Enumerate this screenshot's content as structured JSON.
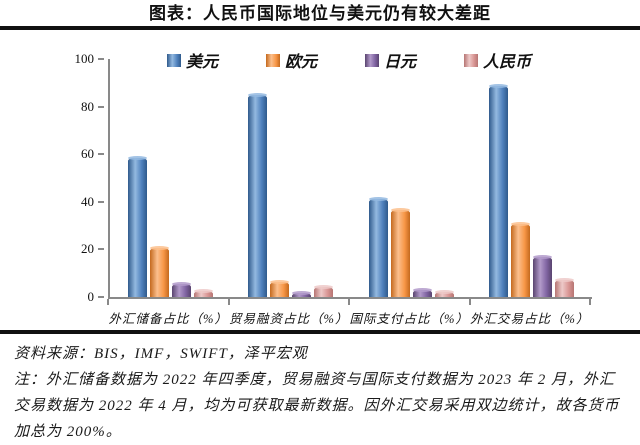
{
  "header": {
    "title": "图表：人民币国际地位与美元仍有较大差距"
  },
  "chart_data": {
    "type": "bar",
    "title": "图表：人民币国际地位与美元仍有较大差距",
    "categories": [
      "外汇储备占比（%）",
      "贸易融资占比（%）",
      "国际支付占比（%）",
      "外汇交易占比（%）"
    ],
    "series": [
      {
        "name": "美元",
        "color": "#4F81BD",
        "color_light": "#93B9E0",
        "color_dark": "#2F5A8C",
        "values": [
          58.5,
          85.0,
          41.1,
          88.5
        ]
      },
      {
        "name": "欧元",
        "color": "#F79646",
        "color_light": "#FBBF8D",
        "color_dark": "#C4691E",
        "values": [
          20.6,
          6.3,
          36.4,
          30.5
        ]
      },
      {
        "name": "日元",
        "color": "#8064A2",
        "color_light": "#B29ACA",
        "color_dark": "#59446F",
        "values": [
          5.5,
          1.7,
          3.0,
          16.7
        ]
      },
      {
        "name": "人民币",
        "color": "#D99694",
        "color_light": "#EDC9C8",
        "color_dark": "#B67573",
        "values": [
          2.7,
          4.4,
          2.2,
          7.0
        ]
      }
    ],
    "xlabel": "",
    "ylabel": "",
    "ylim": [
      0,
      100
    ],
    "yticks": [
      0,
      20,
      40,
      60,
      80,
      100
    ],
    "grid": false,
    "legend_position": "top",
    "axis_color": "#898989"
  },
  "footer": {
    "source": "资料来源：BIS，IMF，SWIFT，泽平宏观",
    "note": "注：外汇储备数据为 2022 年四季度，贸易融资与国际支付数据为 2023 年 2 月，外汇交易数据为 2022 年 4 月，均为可获取最新数据。因外汇交易采用双边统计，故各货币加总为 200%。"
  }
}
